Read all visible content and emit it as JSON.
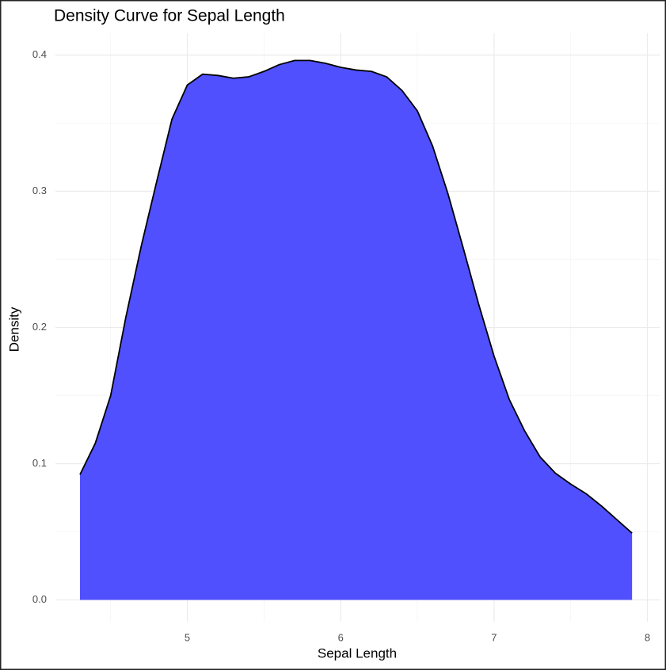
{
  "chart_data": {
    "type": "area",
    "title": "Density Curve for Sepal Length",
    "x_label": "Sepal Length",
    "y_label": "Density",
    "x": [
      4.3,
      4.4,
      4.5,
      4.6,
      4.7,
      4.8,
      4.9,
      5.0,
      5.1,
      5.2,
      5.3,
      5.4,
      5.5,
      5.6,
      5.7,
      5.8,
      5.9,
      6.0,
      6.1,
      6.2,
      6.3,
      6.4,
      6.5,
      6.6,
      6.7,
      6.8,
      6.9,
      7.0,
      7.1,
      7.2,
      7.3,
      7.4,
      7.5,
      7.6,
      7.7,
      7.8,
      7.9
    ],
    "values": [
      0.092,
      0.115,
      0.15,
      0.208,
      0.26,
      0.307,
      0.353,
      0.378,
      0.386,
      0.385,
      0.383,
      0.384,
      0.388,
      0.393,
      0.396,
      0.396,
      0.394,
      0.391,
      0.389,
      0.388,
      0.384,
      0.374,
      0.359,
      0.333,
      0.298,
      0.258,
      0.217,
      0.179,
      0.147,
      0.124,
      0.105,
      0.093,
      0.085,
      0.078,
      0.069,
      0.059,
      0.049
    ],
    "color": "#5050ff",
    "line_color": "#000000",
    "xlim": [
      4.14,
      8.08
    ],
    "ylim": [
      -0.016,
      0.416
    ],
    "xticks": [
      5,
      6,
      7,
      8
    ],
    "yticks": [
      {
        "value": 0,
        "label": "0.0"
      },
      0.1,
      0.2,
      0.3,
      0.4
    ],
    "minor_xticks": [
      4.5,
      5.5,
      6.5,
      7.5
    ],
    "minor_yticks": [
      0.05,
      0.15,
      0.25,
      0.35
    ],
    "grid": true
  }
}
